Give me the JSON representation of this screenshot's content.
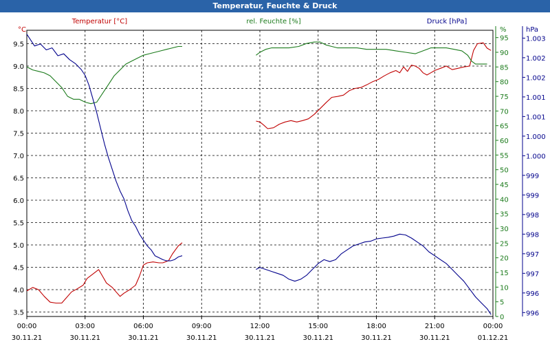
{
  "window": {
    "title": "Temperatur, Feuchte & Druck"
  },
  "colors": {
    "temperature": "#c00000",
    "humidity": "#1a7a1a",
    "pressure": "#00008b",
    "grid": "#000000",
    "axis": "#000000",
    "title_bar": "#2a63a8"
  },
  "chart_data": {
    "type": "line",
    "title": "Temperatur, Feuchte & Druck",
    "grid": true,
    "x_ticks": [
      {
        "time": "00:00",
        "date": "30.11.21"
      },
      {
        "time": "03:00",
        "date": "30.11.21"
      },
      {
        "time": "06:00",
        "date": "30.11.21"
      },
      {
        "time": "09:00",
        "date": "30.11.21"
      },
      {
        "time": "12:00",
        "date": "30.11.21"
      },
      {
        "time": "15:00",
        "date": "30.11.21"
      },
      {
        "time": "18:00",
        "date": "30.11.21"
      },
      {
        "time": "21:00",
        "date": "30.11.21"
      },
      {
        "time": "00:00",
        "date": "01.12.21"
      }
    ],
    "x_range_hours": [
      0,
      24
    ],
    "axes": {
      "temperature": {
        "label": "Temperatur [°C]",
        "unit": "°C",
        "ylim": [
          3.4,
          9.8
        ],
        "ticks": [
          "3.5",
          "4.0",
          "4.5",
          "5.0",
          "5.5",
          "6.0",
          "6.5",
          "7.0",
          "7.5",
          "8.0",
          "8.5",
          "9.0",
          "9.5"
        ]
      },
      "humidity": {
        "label": "rel. Feuchte [%]",
        "unit": "%",
        "ylim": [
          0,
          97.5
        ],
        "ticks": [
          "0",
          "5",
          "10",
          "15",
          "20",
          "25",
          "30",
          "35",
          "40",
          "45",
          "50",
          "55",
          "60",
          "65",
          "70",
          "75",
          "80",
          "85",
          "90",
          "95"
        ],
        "top_label": "%"
      },
      "pressure": {
        "label": "Druck [hPa]",
        "unit": "hPa",
        "ylim": [
          995.9,
          1003.2
        ],
        "ticks": [
          "996",
          "996",
          "997",
          "997",
          "998",
          "998",
          "999",
          "999",
          "1.000",
          "1.000",
          "1.001",
          "1.001",
          "1.002",
          "1.002",
          "1.003"
        ]
      }
    },
    "series": [
      {
        "name": "Temperatur [°C]",
        "segments": [
          [
            [
              0,
              3.97
            ],
            [
              0.3,
              4.05
            ],
            [
              0.6,
              4.0
            ],
            [
              0.9,
              3.85
            ],
            [
              1.2,
              3.72
            ],
            [
              1.5,
              3.7
            ],
            [
              1.8,
              3.7
            ],
            [
              2.0,
              3.8
            ],
            [
              2.3,
              3.95
            ],
            [
              2.6,
              4.02
            ],
            [
              2.9,
              4.1
            ],
            [
              3.1,
              4.25
            ],
            [
              3.4,
              4.35
            ],
            [
              3.7,
              4.45
            ],
            [
              3.9,
              4.3
            ],
            [
              4.1,
              4.15
            ],
            [
              4.4,
              4.05
            ],
            [
              4.6,
              3.95
            ],
            [
              4.8,
              3.85
            ],
            [
              5.0,
              3.92
            ],
            [
              5.3,
              4.0
            ],
            [
              5.6,
              4.1
            ],
            [
              5.8,
              4.3
            ],
            [
              6.0,
              4.55
            ],
            [
              6.2,
              4.6
            ],
            [
              6.5,
              4.62
            ],
            [
              6.8,
              4.6
            ],
            [
              7.0,
              4.6
            ],
            [
              7.3,
              4.65
            ],
            [
              7.5,
              4.8
            ],
            [
              7.8,
              4.98
            ],
            [
              8.0,
              5.05
            ]
          ],
          [
            [
              11.8,
              7.77
            ],
            [
              12.0,
              7.75
            ],
            [
              12.2,
              7.68
            ],
            [
              12.4,
              7.6
            ],
            [
              12.7,
              7.62
            ],
            [
              13.0,
              7.7
            ],
            [
              13.3,
              7.75
            ],
            [
              13.6,
              7.78
            ],
            [
              13.9,
              7.75
            ],
            [
              14.2,
              7.78
            ],
            [
              14.5,
              7.82
            ],
            [
              14.8,
              7.92
            ],
            [
              15.1,
              8.05
            ],
            [
              15.4,
              8.18
            ],
            [
              15.7,
              8.3
            ],
            [
              16.0,
              8.32
            ],
            [
              16.3,
              8.35
            ],
            [
              16.6,
              8.45
            ],
            [
              16.9,
              8.5
            ],
            [
              17.2,
              8.52
            ],
            [
              17.5,
              8.58
            ],
            [
              17.8,
              8.65
            ],
            [
              18.1,
              8.7
            ],
            [
              18.4,
              8.78
            ],
            [
              18.7,
              8.85
            ],
            [
              19.0,
              8.9
            ],
            [
              19.2,
              8.85
            ],
            [
              19.4,
              8.98
            ],
            [
              19.6,
              8.88
            ],
            [
              19.8,
              9.02
            ],
            [
              20.0,
              9.0
            ],
            [
              20.2,
              8.95
            ],
            [
              20.4,
              8.85
            ],
            [
              20.6,
              8.8
            ],
            [
              20.8,
              8.85
            ],
            [
              21.0,
              8.9
            ],
            [
              21.3,
              8.95
            ],
            [
              21.6,
              9.0
            ],
            [
              21.9,
              8.92
            ],
            [
              22.2,
              8.95
            ],
            [
              22.5,
              8.98
            ],
            [
              22.8,
              9.0
            ],
            [
              23.0,
              9.35
            ],
            [
              23.2,
              9.5
            ],
            [
              23.5,
              9.52
            ],
            [
              23.7,
              9.4
            ],
            [
              23.9,
              9.35
            ]
          ]
        ]
      },
      {
        "name": "rel. Feuchte [%]",
        "segments": [
          [
            [
              0,
              85
            ],
            [
              0.3,
              84
            ],
            [
              0.6,
              83.5
            ],
            [
              0.9,
              83
            ],
            [
              1.2,
              82
            ],
            [
              1.5,
              80
            ],
            [
              1.8,
              78
            ],
            [
              2.1,
              75
            ],
            [
              2.4,
              74
            ],
            [
              2.7,
              74
            ],
            [
              3.0,
              73
            ],
            [
              3.3,
              72.5
            ],
            [
              3.6,
              73
            ],
            [
              3.9,
              76
            ],
            [
              4.2,
              79
            ],
            [
              4.5,
              82
            ],
            [
              4.8,
              84
            ],
            [
              5.1,
              86
            ],
            [
              5.4,
              87
            ],
            [
              5.7,
              88
            ],
            [
              6.0,
              89
            ],
            [
              6.3,
              89.5
            ],
            [
              6.6,
              90
            ],
            [
              6.9,
              90.5
            ],
            [
              7.2,
              91
            ],
            [
              7.5,
              91.5
            ],
            [
              7.8,
              92
            ],
            [
              8.0,
              92
            ]
          ],
          [
            [
              11.8,
              89
            ],
            [
              12.0,
              90
            ],
            [
              12.3,
              91
            ],
            [
              12.6,
              91.5
            ],
            [
              13.0,
              91.5
            ],
            [
              13.5,
              91.5
            ],
            [
              14.0,
              92
            ],
            [
              14.4,
              93
            ],
            [
              14.8,
              93.5
            ],
            [
              15.1,
              93.5
            ],
            [
              15.4,
              92.5
            ],
            [
              15.7,
              92
            ],
            [
              16.0,
              91.5
            ],
            [
              16.5,
              91.5
            ],
            [
              17.0,
              91.5
            ],
            [
              17.5,
              91
            ],
            [
              18.0,
              91
            ],
            [
              18.5,
              91
            ],
            [
              19.0,
              90.5
            ],
            [
              19.5,
              90
            ],
            [
              20.0,
              89.5
            ],
            [
              20.4,
              90.5
            ],
            [
              20.8,
              91.5
            ],
            [
              21.2,
              91.5
            ],
            [
              21.6,
              91.5
            ],
            [
              22.0,
              91
            ],
            [
              22.4,
              90.5
            ],
            [
              22.7,
              89
            ],
            [
              22.9,
              87
            ],
            [
              23.1,
              86
            ],
            [
              23.4,
              86
            ],
            [
              23.7,
              86
            ]
          ]
        ]
      },
      {
        "name": "Druck [hPa]",
        "segments": [
          [
            [
              0,
              1003.1
            ],
            [
              0.2,
              1002.95
            ],
            [
              0.4,
              1002.8
            ],
            [
              0.7,
              1002.85
            ],
            [
              1.0,
              1002.7
            ],
            [
              1.3,
              1002.75
            ],
            [
              1.6,
              1002.55
            ],
            [
              1.9,
              1002.6
            ],
            [
              2.2,
              1002.45
            ],
            [
              2.5,
              1002.35
            ],
            [
              2.8,
              1002.2
            ],
            [
              3.0,
              1002.05
            ],
            [
              3.2,
              1001.8
            ],
            [
              3.4,
              1001.45
            ],
            [
              3.6,
              1001.1
            ],
            [
              3.8,
              1000.7
            ],
            [
              4.0,
              1000.3
            ],
            [
              4.2,
              999.95
            ],
            [
              4.4,
              999.65
            ],
            [
              4.6,
              999.35
            ],
            [
              4.8,
              999.1
            ],
            [
              5.0,
              998.9
            ],
            [
              5.2,
              998.6
            ],
            [
              5.4,
              998.35
            ],
            [
              5.6,
              998.2
            ],
            [
              5.8,
              998.0
            ],
            [
              6.0,
              997.85
            ],
            [
              6.2,
              997.7
            ],
            [
              6.4,
              997.6
            ],
            [
              6.6,
              997.45
            ],
            [
              6.8,
              997.4
            ],
            [
              7.0,
              997.35
            ],
            [
              7.2,
              997.32
            ],
            [
              7.4,
              997.32
            ],
            [
              7.6,
              997.35
            ],
            [
              7.8,
              997.42
            ],
            [
              8.0,
              997.45
            ]
          ],
          [
            [
              11.8,
              997.1
            ],
            [
              12.0,
              997.15
            ],
            [
              12.3,
              997.1
            ],
            [
              12.6,
              997.05
            ],
            [
              12.9,
              997.0
            ],
            [
              13.2,
              996.95
            ],
            [
              13.5,
              996.85
            ],
            [
              13.8,
              996.8
            ],
            [
              14.1,
              996.85
            ],
            [
              14.4,
              996.95
            ],
            [
              14.7,
              997.1
            ],
            [
              15.0,
              997.25
            ],
            [
              15.3,
              997.35
            ],
            [
              15.6,
              997.3
            ],
            [
              15.9,
              997.35
            ],
            [
              16.2,
              997.5
            ],
            [
              16.5,
              997.6
            ],
            [
              16.8,
              997.7
            ],
            [
              17.1,
              997.75
            ],
            [
              17.4,
              997.8
            ],
            [
              17.7,
              997.82
            ],
            [
              18.0,
              997.88
            ],
            [
              18.3,
              997.9
            ],
            [
              18.6,
              997.92
            ],
            [
              18.9,
              997.95
            ],
            [
              19.2,
              998.0
            ],
            [
              19.5,
              997.98
            ],
            [
              19.8,
              997.9
            ],
            [
              20.1,
              997.8
            ],
            [
              20.4,
              997.7
            ],
            [
              20.7,
              997.55
            ],
            [
              21.0,
              997.45
            ],
            [
              21.3,
              997.35
            ],
            [
              21.6,
              997.25
            ],
            [
              21.9,
              997.1
            ],
            [
              22.2,
              996.95
            ],
            [
              22.5,
              996.8
            ],
            [
              22.8,
              996.6
            ],
            [
              23.1,
              996.4
            ],
            [
              23.4,
              996.25
            ],
            [
              23.7,
              996.1
            ],
            [
              23.9,
              995.95
            ]
          ]
        ]
      }
    ]
  }
}
